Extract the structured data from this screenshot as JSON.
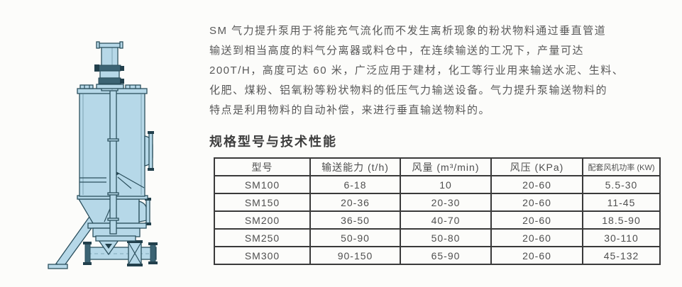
{
  "description": {
    "lines": [
      "SM 气力提升泵用于将能充气流化而不发生离析现象的粉状物料通过垂直管道",
      "输送到相当高度的料气分离器或料仓中，在连续输送的工况下，产量可达",
      "200T/H，高度可达 60 米，广泛应用于建材，化工等行业用来输送水泥、生料、",
      "化肥、煤粉、铝氧粉等粉状物料的低压气力输送设备。气力提升泵输送物料的",
      "特点是利用物料的自动补偿，来进行垂直输送物料的。"
    ]
  },
  "section": {
    "title": "规格型号与技术性能"
  },
  "table": {
    "columns": [
      "型号",
      "输送能力 (t/h)",
      "风量 (m³/min)",
      "风压 (KPa)",
      "配套风机功率 (KW)"
    ],
    "rows": [
      [
        "SM100",
        "6-18",
        "10",
        "20-60",
        "5.5-30"
      ],
      [
        "SM150",
        "20-36",
        "20-30",
        "20-60",
        "11-45"
      ],
      [
        "SM200",
        "36-50",
        "40-70",
        "20-60",
        "18.5-90"
      ],
      [
        "SM250",
        "50-90",
        "50-80",
        "20-60",
        "30-110"
      ],
      [
        "SM300",
        "90-150",
        "65-90",
        "20-60",
        "45-132"
      ]
    ]
  },
  "diagram": {
    "name": "sm-pneumatic-lift-pump-drawing",
    "fill": "#b6d8e8",
    "outline": "#2c505e",
    "dark": "#3c6474"
  }
}
